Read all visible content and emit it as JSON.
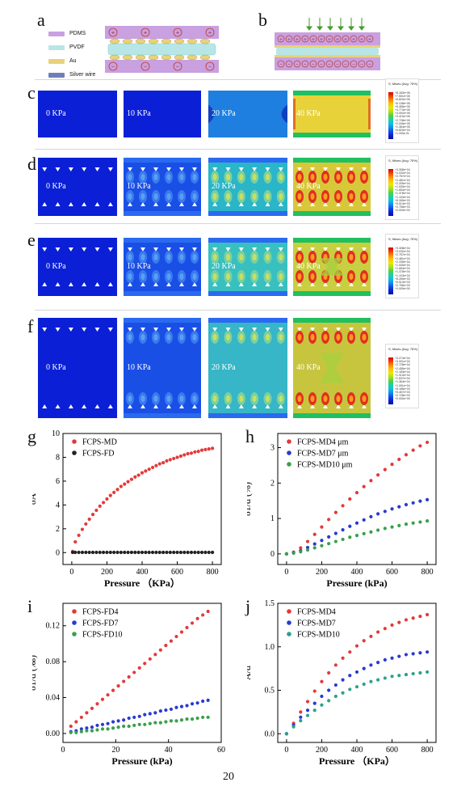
{
  "panels": {
    "a": "a",
    "b": "b",
    "c": "c",
    "d": "d",
    "e": "e",
    "f": "f",
    "g": "g",
    "h": "h",
    "i": "i",
    "j": "j"
  },
  "materials_legend": [
    {
      "label": "PDMS",
      "color": "#c9a0e0"
    },
    {
      "label": "PVDF",
      "color": "#b8e6e6"
    },
    {
      "label": "Au",
      "color": "#e8d27a"
    },
    {
      "label": "Silver wire",
      "color": "#6f7fb8"
    }
  ],
  "pressures": [
    "0 KPa",
    "10 KPa",
    "20 KPa",
    "40 KPa"
  ],
  "contour_legend_title": "S, Mises (Avg: 75%)",
  "contour_legend_values_c": [
    "+8.183e+05",
    "+7.501e+05",
    "+6.820e+05",
    "+6.138e+05",
    "+5.456e+05",
    "+4.774e+05",
    "+4.092e+05",
    "+3.410e+05",
    "+2.728e+05",
    "+2.046e+05",
    "+1.364e+05",
    "+6.820e+04",
    "+1.000e-01"
  ],
  "contour_legend_values_d": [
    "+3.308e+04",
    "+3.032e+04",
    "+2.757e+04",
    "+2.481e+04",
    "+2.205e+04",
    "+1.930e+04",
    "+1.654e+04",
    "+1.378e+04",
    "+1.103e+04",
    "+8.269e+03",
    "+5.513e+03",
    "+2.756e+03",
    "+0.000e+00"
  ],
  "contour_legend_values_e": [
    "+3.308e+04",
    "+3.032e+04",
    "+2.757e+04",
    "+2.481e+04",
    "+2.205e+04",
    "+1.930e+04",
    "+1.654e+04",
    "+1.378e+04",
    "+1.103e+04",
    "+8.269e+03",
    "+5.513e+03",
    "+2.756e+03",
    "+0.000e+00"
  ],
  "contour_legend_values_f": [
    "+3.274e+04",
    "+3.001e+04",
    "+2.728e+04",
    "+2.455e+04",
    "+2.183e+04",
    "+1.910e+04",
    "+1.637e+04",
    "+1.364e+04",
    "+1.091e+04",
    "+8.185e+03",
    "+5.457e+03",
    "+2.728e+03",
    "+0.000e+00"
  ],
  "page_number": "20",
  "chart_data": [
    {
      "id": "g",
      "type": "scatter",
      "xlabel": "Pressure （KPa）",
      "ylabel": "δA",
      "xlim": [
        -50,
        850
      ],
      "ylim": [
        -1,
        10
      ],
      "xticks": [
        0,
        200,
        400,
        600,
        800
      ],
      "yticks": [
        0,
        2,
        4,
        6,
        8,
        10
      ],
      "legend": "top-left",
      "series": [
        {
          "name": "FCPS-MD",
          "color": "#e23a3a",
          "x": [
            5,
            20,
            40,
            60,
            80,
            100,
            120,
            140,
            160,
            180,
            200,
            220,
            240,
            260,
            280,
            300,
            320,
            340,
            360,
            380,
            400,
            420,
            440,
            460,
            480,
            500,
            520,
            540,
            560,
            580,
            600,
            620,
            640,
            660,
            680,
            700,
            720,
            740,
            760,
            780,
            800
          ],
          "y": [
            0.1,
            0.9,
            1.45,
            1.95,
            2.4,
            2.8,
            3.2,
            3.55,
            3.9,
            4.2,
            4.5,
            4.8,
            5.05,
            5.3,
            5.55,
            5.75,
            5.95,
            6.15,
            6.35,
            6.5,
            6.7,
            6.85,
            7.0,
            7.15,
            7.3,
            7.45,
            7.55,
            7.7,
            7.8,
            7.9,
            8.0,
            8.1,
            8.2,
            8.3,
            8.35,
            8.45,
            8.5,
            8.6,
            8.65,
            8.7,
            8.75
          ]
        },
        {
          "name": "FCPS-FD",
          "color": "#222222",
          "x": [
            5,
            20,
            40,
            60,
            80,
            100,
            120,
            140,
            160,
            180,
            200,
            220,
            240,
            260,
            280,
            300,
            320,
            340,
            360,
            380,
            400,
            420,
            440,
            460,
            480,
            500,
            520,
            540,
            560,
            580,
            600,
            620,
            640,
            660,
            680,
            700,
            720,
            740,
            760,
            780,
            800
          ],
          "y": [
            0.02,
            0.02,
            0.02,
            0.02,
            0.02,
            0.02,
            0.02,
            0.02,
            0.02,
            0.02,
            0.02,
            0.02,
            0.02,
            0.02,
            0.02,
            0.02,
            0.02,
            0.02,
            0.02,
            0.02,
            0.02,
            0.02,
            0.02,
            0.02,
            0.02,
            0.02,
            0.02,
            0.02,
            0.02,
            0.02,
            0.02,
            0.02,
            0.02,
            0.02,
            0.02,
            0.02,
            0.02,
            0.02,
            0.02,
            0.02,
            0.02
          ]
        }
      ]
    },
    {
      "id": "h",
      "type": "scatter",
      "xlabel": "Pressure (kPa)",
      "ylabel": "δ1/d (%)",
      "xlim": [
        -50,
        850
      ],
      "ylim": [
        -0.3,
        3.4
      ],
      "xticks": [
        0,
        200,
        400,
        600,
        800
      ],
      "yticks": [
        0,
        1,
        2,
        3
      ],
      "legend": "top-left",
      "series": [
        {
          "name": "FCPS-MD4 μm",
          "color": "#e23a3a",
          "x": [
            0,
            40,
            80,
            120,
            160,
            200,
            240,
            280,
            320,
            360,
            400,
            440,
            480,
            520,
            560,
            600,
            640,
            680,
            720,
            760,
            800
          ],
          "y": [
            0.0,
            0.05,
            0.17,
            0.35,
            0.55,
            0.76,
            0.97,
            1.17,
            1.36,
            1.55,
            1.73,
            1.9,
            2.07,
            2.23,
            2.38,
            2.53,
            2.67,
            2.8,
            2.93,
            3.05,
            3.15
          ]
        },
        {
          "name": "FCPS-MD7 μm",
          "color": "#2a3ad0",
          "x": [
            0,
            40,
            80,
            120,
            160,
            200,
            240,
            280,
            320,
            360,
            400,
            440,
            480,
            520,
            560,
            600,
            640,
            680,
            720,
            760,
            800
          ],
          "y": [
            0.0,
            0.03,
            0.09,
            0.18,
            0.28,
            0.38,
            0.48,
            0.58,
            0.68,
            0.78,
            0.87,
            0.96,
            1.05,
            1.13,
            1.2,
            1.27,
            1.33,
            1.39,
            1.44,
            1.49,
            1.53
          ]
        },
        {
          "name": "FCPS-MD10 μm",
          "color": "#3aa04a",
          "x": [
            0,
            40,
            80,
            120,
            160,
            200,
            240,
            280,
            320,
            360,
            400,
            440,
            480,
            520,
            560,
            600,
            640,
            680,
            720,
            760,
            800
          ],
          "y": [
            0.0,
            0.02,
            0.06,
            0.11,
            0.17,
            0.23,
            0.29,
            0.35,
            0.41,
            0.47,
            0.52,
            0.57,
            0.62,
            0.67,
            0.72,
            0.76,
            0.8,
            0.84,
            0.87,
            0.9,
            0.93
          ]
        }
      ]
    },
    {
      "id": "i",
      "type": "scatter",
      "xlabel": "Pressure (kPa)",
      "ylabel": "δ1/d (‰)",
      "xlim": [
        0,
        60
      ],
      "ylim": [
        -0.01,
        0.145
      ],
      "xticks": [
        0,
        20,
        40,
        60
      ],
      "yticks": [
        0.0,
        0.04,
        0.08,
        0.12
      ],
      "ytick_labels": [
        "0.00",
        "0.04",
        "0.08",
        "0.12"
      ],
      "legend": "top-left",
      "series": [
        {
          "name": "FCPS-FD4",
          "color": "#e23a3a",
          "x": [
            3,
            5,
            7,
            9,
            11,
            13,
            15,
            17,
            19,
            21,
            23,
            25,
            27,
            29,
            31,
            33,
            35,
            37,
            39,
            41,
            43,
            45,
            47,
            49,
            51,
            53,
            55
          ],
          "y": [
            0.008,
            0.013,
            0.018,
            0.023,
            0.028,
            0.033,
            0.038,
            0.043,
            0.048,
            0.053,
            0.058,
            0.063,
            0.068,
            0.073,
            0.078,
            0.083,
            0.088,
            0.093,
            0.098,
            0.103,
            0.108,
            0.113,
            0.118,
            0.123,
            0.128,
            0.132,
            0.136
          ]
        },
        {
          "name": "FCPS-FD7",
          "color": "#2a3ad0",
          "x": [
            3,
            5,
            7,
            9,
            11,
            13,
            15,
            17,
            19,
            21,
            23,
            25,
            27,
            29,
            31,
            33,
            35,
            37,
            39,
            41,
            43,
            45,
            47,
            49,
            51,
            53,
            55
          ],
          "y": [
            0.002,
            0.003,
            0.005,
            0.006,
            0.007,
            0.009,
            0.01,
            0.011,
            0.013,
            0.014,
            0.015,
            0.017,
            0.018,
            0.019,
            0.021,
            0.022,
            0.023,
            0.025,
            0.026,
            0.027,
            0.029,
            0.03,
            0.031,
            0.033,
            0.034,
            0.036,
            0.037
          ]
        },
        {
          "name": "FCPS-FD10",
          "color": "#3aa04a",
          "x": [
            3,
            5,
            7,
            9,
            11,
            13,
            15,
            17,
            19,
            21,
            23,
            25,
            27,
            29,
            31,
            33,
            35,
            37,
            39,
            41,
            43,
            45,
            47,
            49,
            51,
            53,
            55
          ],
          "y": [
            0.001,
            0.001,
            0.002,
            0.003,
            0.003,
            0.004,
            0.005,
            0.005,
            0.006,
            0.007,
            0.008,
            0.008,
            0.009,
            0.01,
            0.01,
            0.011,
            0.012,
            0.012,
            0.013,
            0.014,
            0.014,
            0.015,
            0.016,
            0.016,
            0.017,
            0.018,
            0.018
          ]
        }
      ]
    },
    {
      "id": "j",
      "type": "scatter",
      "xlabel": "Pressure （KPa）",
      "ylabel": "A/d",
      "xlim": [
        -50,
        850
      ],
      "ylim": [
        -0.1,
        1.5
      ],
      "xticks": [
        0,
        200,
        400,
        600,
        800
      ],
      "yticks": [
        0.0,
        0.5,
        1.0,
        1.5
      ],
      "ytick_labels": [
        "0.0",
        "0.5",
        "1.0",
        "1.5"
      ],
      "legend": "top-left",
      "series": [
        {
          "name": "FCPS-MD4",
          "color": "#e23a3a",
          "x": [
            0,
            40,
            80,
            120,
            160,
            200,
            240,
            280,
            320,
            360,
            400,
            440,
            480,
            520,
            560,
            600,
            640,
            680,
            720,
            760,
            800
          ],
          "y": [
            0.0,
            0.12,
            0.25,
            0.37,
            0.49,
            0.6,
            0.7,
            0.79,
            0.87,
            0.94,
            1.01,
            1.07,
            1.12,
            1.17,
            1.21,
            1.25,
            1.28,
            1.31,
            1.33,
            1.35,
            1.37
          ]
        },
        {
          "name": "FCPS-MD7",
          "color": "#2a3ad0",
          "x": [
            0,
            40,
            80,
            120,
            160,
            200,
            240,
            280,
            320,
            360,
            400,
            440,
            480,
            520,
            560,
            600,
            640,
            680,
            720,
            760,
            800
          ],
          "y": [
            0.0,
            0.1,
            0.19,
            0.27,
            0.35,
            0.43,
            0.5,
            0.56,
            0.62,
            0.67,
            0.71,
            0.75,
            0.79,
            0.82,
            0.85,
            0.87,
            0.89,
            0.91,
            0.92,
            0.93,
            0.94
          ]
        },
        {
          "name": "FCPS-MD10",
          "color": "#2fa08a",
          "x": [
            0,
            40,
            80,
            120,
            160,
            200,
            240,
            280,
            320,
            360,
            400,
            440,
            480,
            520,
            560,
            600,
            640,
            680,
            720,
            760,
            800
          ],
          "y": [
            0.0,
            0.08,
            0.15,
            0.21,
            0.27,
            0.33,
            0.38,
            0.43,
            0.47,
            0.51,
            0.54,
            0.57,
            0.6,
            0.62,
            0.64,
            0.66,
            0.67,
            0.68,
            0.69,
            0.7,
            0.71
          ]
        }
      ]
    }
  ]
}
